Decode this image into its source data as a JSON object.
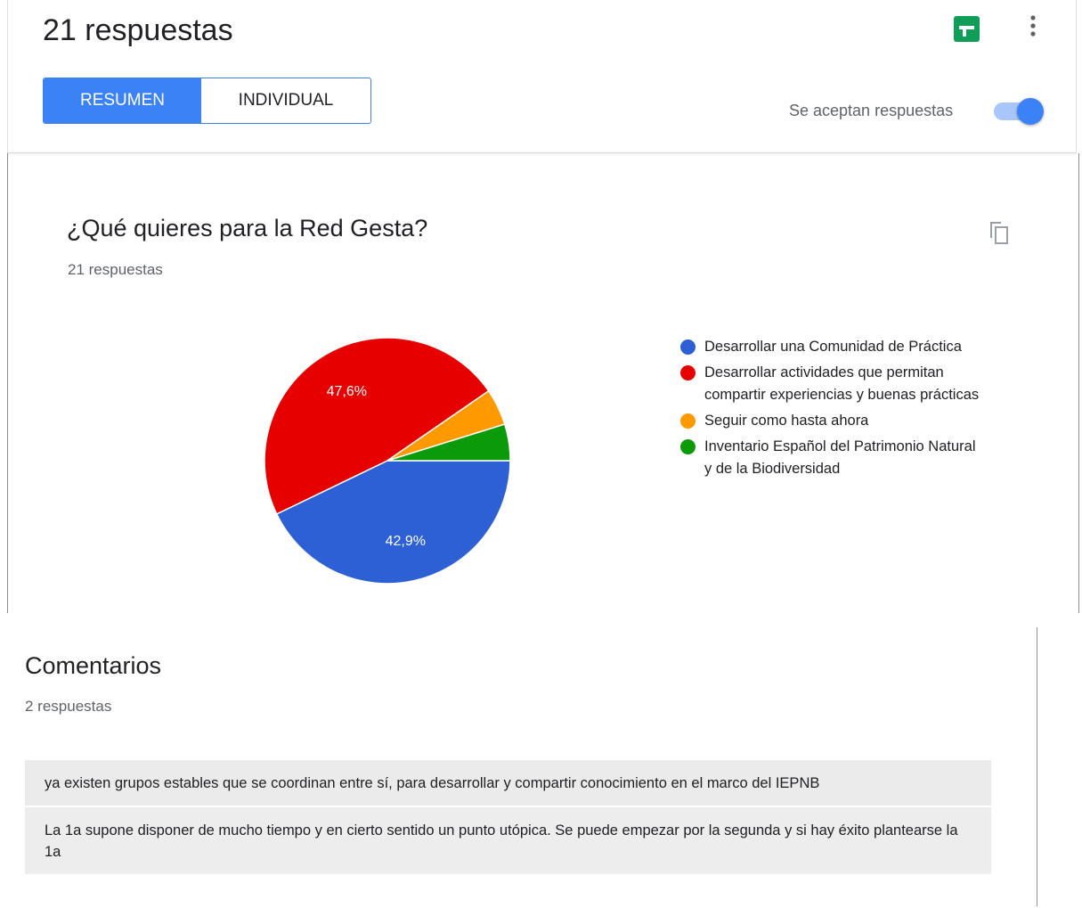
{
  "header": {
    "response_count_title": "21 respuestas",
    "tabs": [
      {
        "label": "RESUMEN",
        "active": true
      },
      {
        "label": "INDIVIDUAL",
        "active": false
      }
    ],
    "accepting_responses": {
      "label": "Se aceptan respuestas",
      "on": true
    },
    "icons": {
      "sheets": "google-sheets-icon",
      "more": "more-vert-icon"
    },
    "accent_color": "#3b82f6"
  },
  "question": {
    "title": "¿Qué quieres para la Red Gesta?",
    "responses": "21 respuestas",
    "copy_icon": "copy-icon",
    "chart_data": {
      "type": "pie",
      "title": "¿Qué quieres para la Red Gesta?",
      "slices": [
        {
          "label": "Desarrollar una Comunidad de Práctica",
          "value": 42.9,
          "percent_label": "42,9%",
          "color": "#2d5fd5"
        },
        {
          "label": "Desarrollar actividades que permitan compartir experiencias y buenas prácticas",
          "value": 47.6,
          "percent_label": "47,6%",
          "color": "#e60000"
        },
        {
          "label": "Seguir como hasta ahora",
          "value": 4.8,
          "percent_label": "",
          "color": "#ff9900"
        },
        {
          "label": "Inventario Español del Patrimonio Natural y de la Biodiversidad",
          "value": 4.8,
          "percent_label": "",
          "color": "#0a9a0a"
        }
      ],
      "legend_position": "right"
    }
  },
  "comments": {
    "title": "Comentarios",
    "responses": "2 respuestas",
    "answers": [
      "ya existen grupos estables que se coordinan entre sí, para desarrollar y compartir conocimiento en el marco del IEPNB",
      "La 1a supone disponer de mucho tiempo y en cierto sentido un punto utópica. Se puede empezar por la segunda y si hay éxito plantearse la 1a"
    ]
  }
}
